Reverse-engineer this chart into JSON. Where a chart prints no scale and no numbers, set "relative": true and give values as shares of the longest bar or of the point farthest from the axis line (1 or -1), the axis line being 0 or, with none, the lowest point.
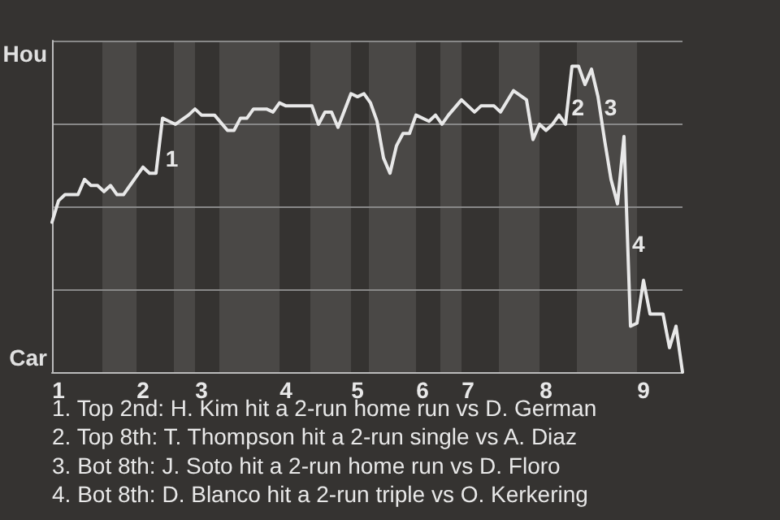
{
  "chart_data": {
    "type": "line",
    "relative": true,
    "categories": [
      null,
      "1",
      null,
      null,
      null,
      null,
      null,
      null,
      null,
      null,
      null,
      null,
      null,
      null,
      "2",
      null,
      null,
      null,
      null,
      null,
      null,
      null,
      null,
      "3",
      null,
      null,
      null,
      null,
      null,
      null,
      null,
      null,
      null,
      null,
      null,
      null,
      "4",
      null,
      null,
      null,
      null,
      null,
      null,
      null,
      null,
      null,
      null,
      "5",
      null,
      null,
      null,
      null,
      null,
      null,
      null,
      null,
      null,
      "6",
      null,
      null,
      null,
      null,
      null,
      null,
      "7",
      null,
      null,
      null,
      null,
      null,
      null,
      null,
      null,
      null,
      null,
      null,
      "8",
      null,
      null,
      null,
      null,
      null,
      null,
      null,
      null,
      null,
      null,
      null,
      null,
      null,
      null,
      "9",
      null,
      null,
      null,
      null,
      null,
      null
    ],
    "series": [
      {
        "color": "#e8e8e8",
        "values": [
          0.49,
          0.56,
          0.58,
          0.58,
          0.58,
          0.63,
          0.61,
          0.61,
          0.59,
          0.61,
          0.58,
          0.58,
          0.61,
          null,
          0.67,
          0.65,
          0.65,
          0.83,
          0.82,
          0.81,
          null,
          0.84,
          0.86,
          0.84,
          0.84,
          0.84,
          null,
          0.79,
          0.79,
          0.83,
          0.83,
          0.86,
          null,
          0.86,
          0.85,
          0.88,
          0.87,
          0.87,
          null,
          null,
          0.87,
          0.81,
          0.85,
          0.85,
          0.8,
          null,
          0.91,
          0.9,
          0.91,
          0.88,
          0.82,
          0.7,
          0.65,
          0.74,
          0.78,
          0.78,
          0.84,
          null,
          0.82,
          0.84,
          0.81,
          0.84,
          null,
          0.89,
          null,
          0.85,
          0.87,
          null,
          0.87,
          0.85,
          null,
          0.92,
          null,
          0.89,
          0.76,
          0.81,
          0.79,
          0.81,
          0.84,
          0.81,
          1,
          1,
          0.94,
          0.99,
          0.9,
          0.76,
          0.63,
          0.55,
          0.77,
          0.15,
          0.16,
          0.3,
          0.19,
          null,
          0.19,
          0.08,
          0.15,
          0
        ]
      }
    ],
    "grid": "y",
    "annotations": [
      "Hou",
      "Car",
      "1",
      "2",
      "3",
      "4",
      "1. Top 2nd: H. Kim hit a 2-run home run vs D. German",
      "2. Top 8th: T. Thompson hit a 2-run single vs A. Diaz",
      "3. Bot 8th: J. Soto hit a 2-run home run vs D. Floro",
      "4. Bot 8th: D. Blanco hit a 2-run triple vs O. Kerkering"
    ],
    "marker": "none",
    "line_style": "solid"
  }
}
